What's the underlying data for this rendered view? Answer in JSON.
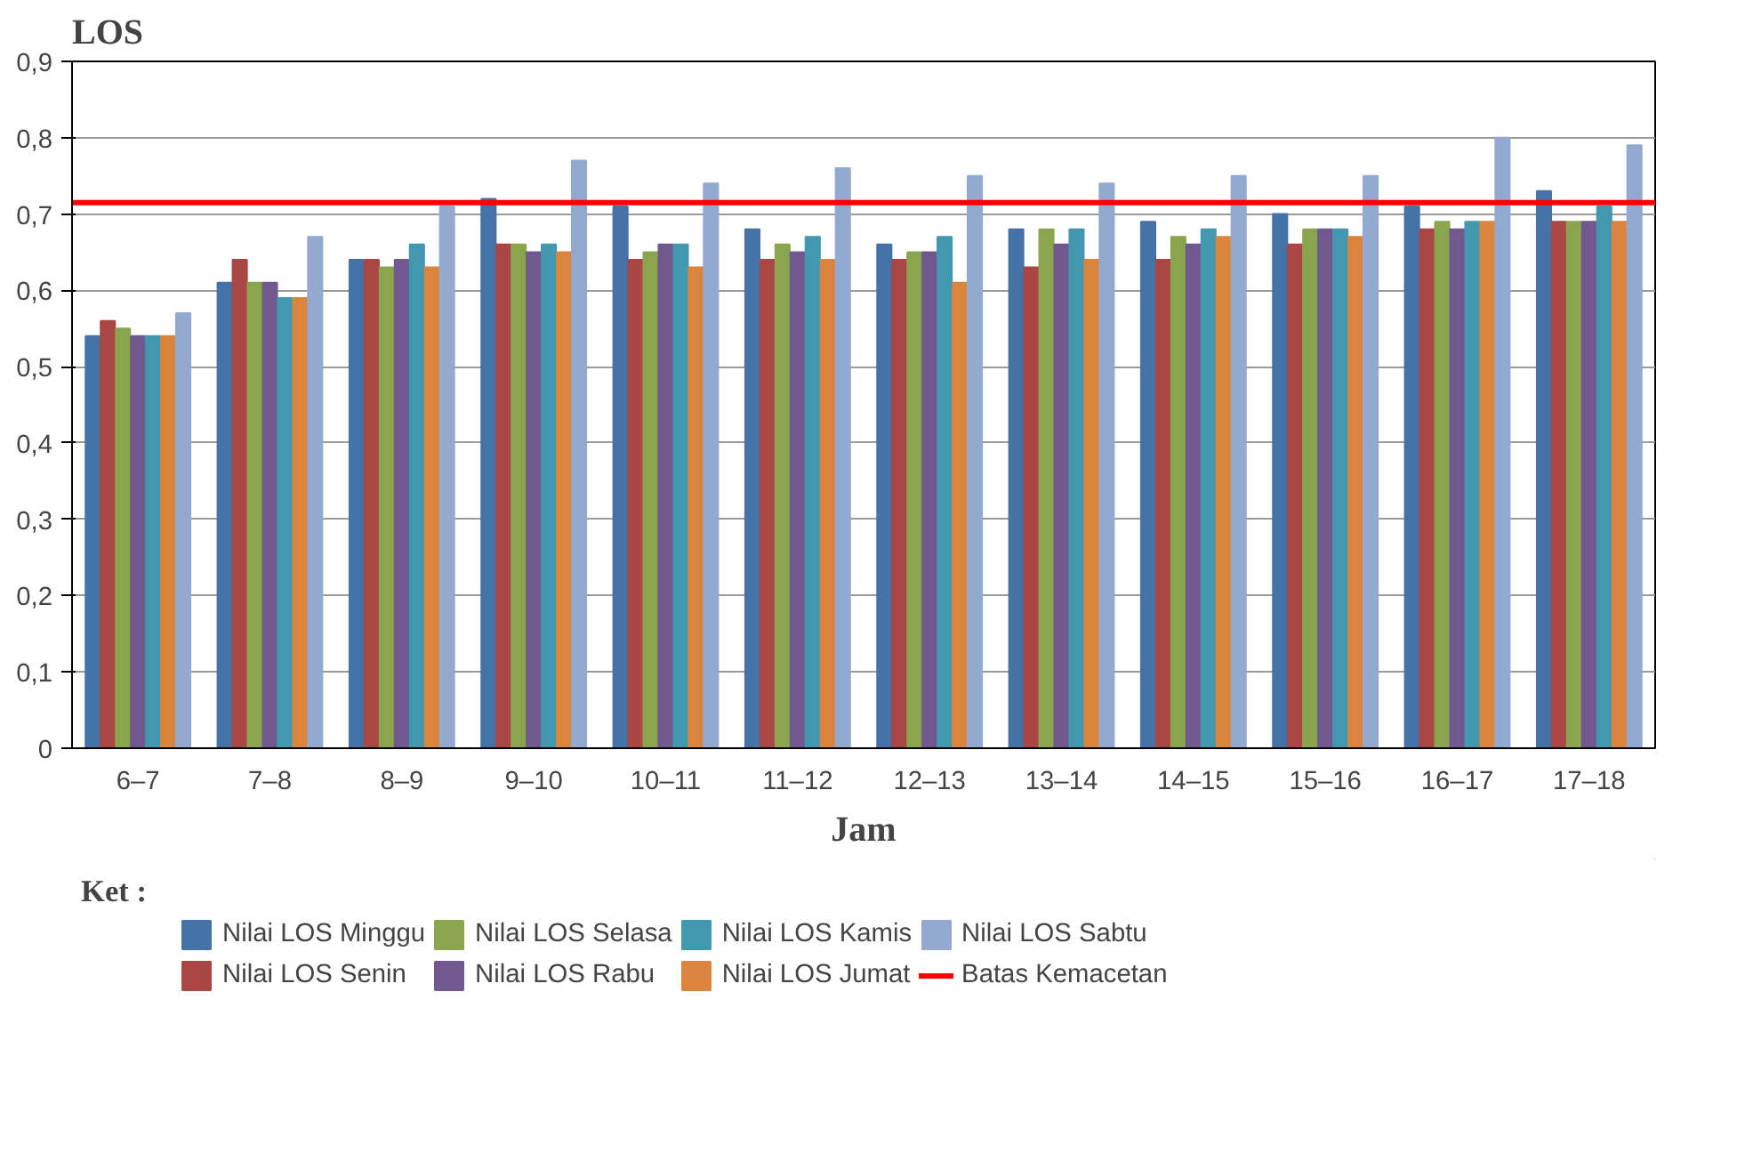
{
  "chart_data": {
    "type": "bar",
    "ylabel": "LOS",
    "xlabel": "Jam",
    "legend_title": "Ket :",
    "categories": [
      "6–7",
      "7–8",
      "8–9",
      "9–10",
      "10–11",
      "11–12",
      "12–13",
      "13–14",
      "14–15",
      "15–16",
      "16–17",
      "17–18"
    ],
    "series": [
      {
        "name": "Nilai LOS Minggu",
        "color": "#4572a7",
        "values": [
          0.54,
          0.61,
          0.64,
          0.72,
          0.71,
          0.68,
          0.66,
          0.68,
          0.69,
          0.7,
          0.71,
          0.73
        ]
      },
      {
        "name": "Nilai LOS Senin",
        "color": "#aa4643",
        "values": [
          0.56,
          0.64,
          0.64,
          0.66,
          0.64,
          0.64,
          0.64,
          0.63,
          0.64,
          0.66,
          0.68,
          0.69
        ]
      },
      {
        "name": "Nilai LOS Selasa",
        "color": "#89a54e",
        "values": [
          0.55,
          0.61,
          0.63,
          0.66,
          0.65,
          0.66,
          0.65,
          0.68,
          0.67,
          0.68,
          0.69,
          0.69
        ]
      },
      {
        "name": "Nilai LOS Rabu",
        "color": "#71588f",
        "values": [
          0.54,
          0.61,
          0.64,
          0.65,
          0.66,
          0.65,
          0.65,
          0.66,
          0.66,
          0.68,
          0.68,
          0.69
        ]
      },
      {
        "name": "Nilai LOS Kamis",
        "color": "#4198af",
        "values": [
          0.54,
          0.59,
          0.66,
          0.66,
          0.66,
          0.67,
          0.67,
          0.68,
          0.68,
          0.68,
          0.69,
          0.71
        ]
      },
      {
        "name": "Nilai LOS Jumat",
        "color": "#db843d",
        "values": [
          0.54,
          0.59,
          0.63,
          0.65,
          0.63,
          0.64,
          0.61,
          0.64,
          0.67,
          0.67,
          0.69,
          0.69
        ]
      },
      {
        "name": "Nilai LOS Sabtu",
        "color": "#93a9cf",
        "values": [
          0.57,
          0.67,
          0.71,
          0.77,
          0.74,
          0.76,
          0.75,
          0.74,
          0.75,
          0.75,
          0.8,
          0.79
        ]
      }
    ],
    "ylim": [
      0,
      0.9
    ],
    "yticks": [
      0,
      {
        "value": 0.1,
        "label": "0,1"
      },
      {
        "value": 0.2,
        "label": "0,2"
      },
      {
        "value": 0.3,
        "label": "0,3"
      },
      {
        "value": 0.4,
        "label": "0,4"
      },
      {
        "value": 0.5,
        "label": "0,5"
      },
      {
        "value": 0.6,
        "label": "0,6"
      },
      {
        "value": 0.7,
        "label": "0,7"
      },
      {
        "value": 0.8,
        "label": "0,8"
      },
      {
        "value": 0.9,
        "label": "0,9"
      }
    ],
    "ref_lines": [
      {
        "axis": "y",
        "value": 0.715,
        "label": "Batas Kemacetan",
        "color": "#ff0000"
      }
    ],
    "grid": "y",
    "legend": "bottom"
  }
}
